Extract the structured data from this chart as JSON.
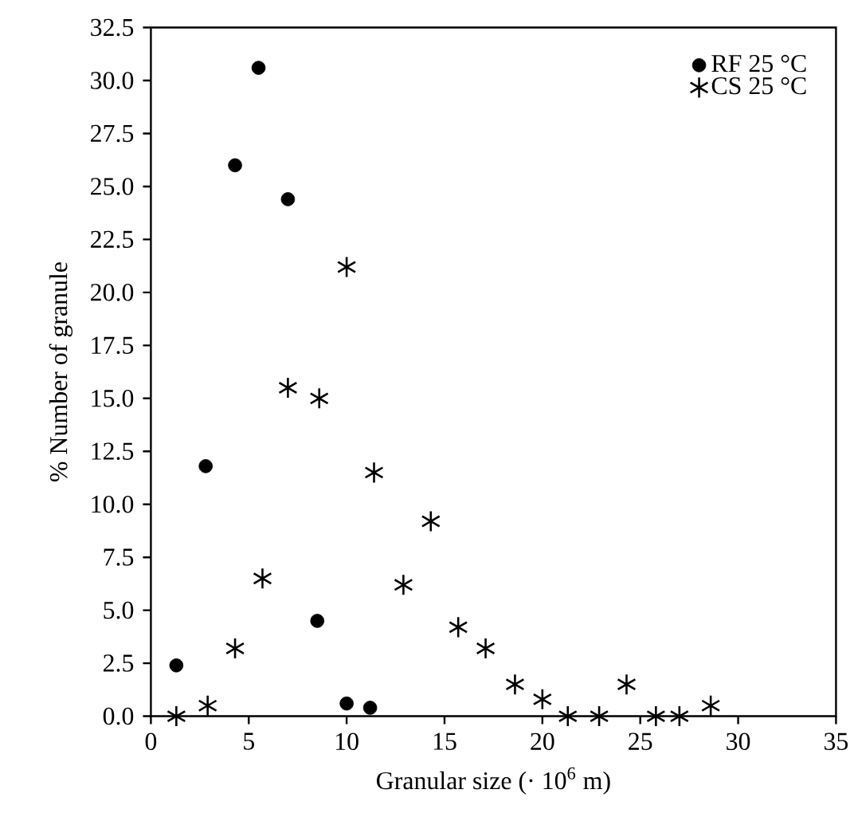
{
  "chart_data": {
    "type": "scatter",
    "xlabel": "Granular size (· 10$^{6}$ m)",
    "ylabel": "% Number of granule",
    "xlim": [
      0,
      35
    ],
    "xticks": [
      0,
      5,
      10,
      15,
      20,
      25,
      30,
      35
    ],
    "ylim": [
      0,
      32.5
    ],
    "yticks": [
      {
        "value": 0,
        "label": "0.0"
      },
      {
        "value": 2.5,
        "label": "2.5"
      },
      {
        "value": 5,
        "label": "5.0"
      },
      {
        "value": 7.5,
        "label": "7.5"
      },
      {
        "value": 10,
        "label": "10.0"
      },
      {
        "value": 12.5,
        "label": "12.5"
      },
      {
        "value": 15,
        "label": "15.0"
      },
      {
        "value": 17.5,
        "label": "17.5"
      },
      {
        "value": 20,
        "label": "20.0"
      },
      {
        "value": 22.5,
        "label": "22.5"
      },
      {
        "value": 25,
        "label": "25.0"
      },
      {
        "value": 27.5,
        "label": "27.5"
      },
      {
        "value": 30,
        "label": "30.0"
      },
      {
        "value": 32.5,
        "label": "32.5"
      }
    ],
    "grid": false,
    "legend": "top right",
    "series": [
      {
        "name": "RF 25 °C",
        "color": "#000000",
        "marker": "circle",
        "x": [
          1.3,
          2.8,
          4.3,
          5.5,
          7.0,
          8.5,
          10.0,
          11.2
        ],
        "values": [
          2.4,
          11.8,
          26.0,
          30.6,
          24.4,
          4.5,
          0.6,
          0.4
        ]
      },
      {
        "name": "CS 25 °C",
        "color": "#000000",
        "marker": "cross",
        "x": [
          1.3,
          2.9,
          4.3,
          5.7,
          7.0,
          8.6,
          10.0,
          11.4,
          12.9,
          14.3,
          15.7,
          17.1,
          18.6,
          20.0,
          21.3,
          22.9,
          24.3,
          25.8,
          27.0,
          28.6
        ],
        "values": [
          0,
          0.5,
          3.2,
          6.5,
          15.5,
          15.0,
          21.2,
          11.5,
          6.2,
          9.2,
          4.2,
          3.2,
          1.5,
          0.8,
          0,
          0,
          1.5,
          0,
          0,
          0.5
        ]
      }
    ]
  }
}
